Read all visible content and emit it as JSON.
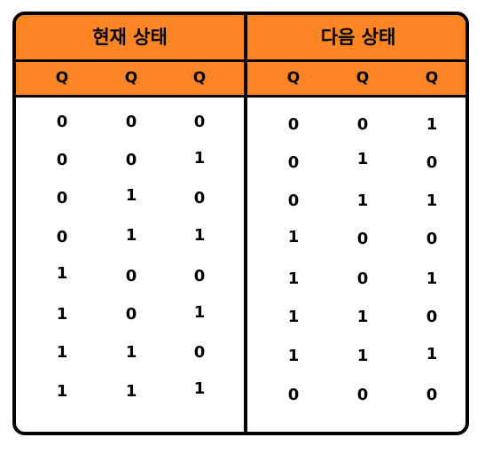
{
  "groups": [
    {
      "title": "현재 상태",
      "columns": [
        "Q",
        "Q",
        "Q"
      ],
      "rows": [
        [
          "0",
          "0",
          "0"
        ],
        [
          "0",
          "0",
          "1"
        ],
        [
          "0",
          "1",
          "0"
        ],
        [
          "0",
          "1",
          "1"
        ],
        [
          "1",
          "0",
          "0"
        ],
        [
          "1",
          "0",
          "1"
        ],
        [
          "1",
          "1",
          "0"
        ],
        [
          "1",
          "1",
          "1"
        ]
      ]
    },
    {
      "title": "다음 상태",
      "columns": [
        "Q",
        "Q",
        "Q"
      ],
      "rows": [
        [
          "0",
          "0",
          "1"
        ],
        [
          "0",
          "1",
          "0"
        ],
        [
          "0",
          "1",
          "1"
        ],
        [
          "1",
          "0",
          "0"
        ],
        [
          "1",
          "0",
          "1"
        ],
        [
          "1",
          "1",
          "0"
        ],
        [
          "1",
          "1",
          "1"
        ],
        [
          "0",
          "0",
          "0"
        ]
      ]
    }
  ],
  "colors": {
    "header": "#fd8524",
    "border": "#000000"
  }
}
